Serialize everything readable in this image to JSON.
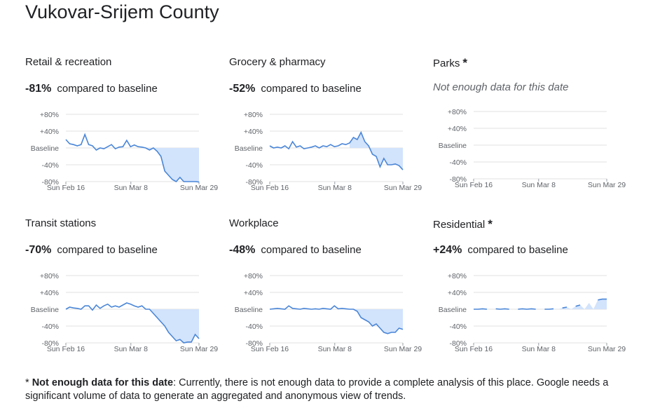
{
  "page_title": "Vukovar-Srijem County",
  "footnote": {
    "marker": "*",
    "bold": "Not enough data for this date",
    "text": ": Currently, there is not enough data to provide a complete analysis of this place. Google needs a significant volume of data to generate an aggregated and anonymous view of trends."
  },
  "colors": {
    "line": "#4a86d8",
    "fill": "#d2e3fc",
    "grid": "#e0e0e0"
  },
  "chart_data": [
    {
      "type": "area",
      "title": "Retail & recreation",
      "headline": "-81%",
      "headline_suffix": "compared to baseline",
      "y_ticks": [
        "+80%",
        "+40%",
        "Baseline",
        "-40%",
        "-80%"
      ],
      "x_ticks": [
        "Sun Feb 16",
        "Sun Mar 8",
        "Sun Mar 29"
      ],
      "ylim": [
        -80,
        80
      ],
      "x_count": 44,
      "values": [
        20,
        10,
        8,
        5,
        8,
        32,
        8,
        5,
        -5,
        0,
        -2,
        3,
        8,
        -2,
        2,
        3,
        18,
        3,
        7,
        3,
        2,
        0,
        -5,
        0,
        -8,
        -20,
        -55,
        -65,
        -75,
        -80,
        -70,
        -80,
        -80,
        -80,
        -80,
        -81
      ]
    },
    {
      "type": "area",
      "title": "Grocery & pharmacy",
      "headline": "-52%",
      "headline_suffix": "compared to baseline",
      "y_ticks": [
        "+80%",
        "+40%",
        "Baseline",
        "-40%",
        "-80%"
      ],
      "x_ticks": [
        "Sun Feb 16",
        "Sun Mar 8",
        "Sun Mar 29"
      ],
      "ylim": [
        -80,
        80
      ],
      "x_count": 44,
      "values": [
        5,
        0,
        2,
        0,
        5,
        -2,
        15,
        2,
        5,
        -2,
        0,
        2,
        5,
        0,
        5,
        3,
        8,
        3,
        5,
        10,
        8,
        12,
        25,
        20,
        37,
        15,
        5,
        -15,
        -20,
        -45,
        -25,
        -40,
        -40,
        -38,
        -42,
        -52
      ]
    },
    {
      "type": "area",
      "title": "Parks",
      "no_data": true,
      "no_data_text": "Not enough data for this date",
      "y_ticks": [
        "+80%",
        "+40%",
        "Baseline",
        "-40%",
        "-80%"
      ],
      "x_ticks": [
        "Sun Feb 16",
        "Sun Mar 8",
        "Sun Mar 29"
      ],
      "ylim": [
        -80,
        80
      ],
      "x_count": 44,
      "values": []
    },
    {
      "type": "area",
      "title": "Transit stations",
      "headline": "-70%",
      "headline_suffix": "compared to baseline",
      "y_ticks": [
        "+80%",
        "+40%",
        "Baseline",
        "-40%",
        "-80%"
      ],
      "x_ticks": [
        "Sun Feb 16",
        "Sun Mar 8",
        "Sun Mar 29"
      ],
      "ylim": [
        -80,
        80
      ],
      "x_count": 44,
      "values": [
        0,
        5,
        3,
        2,
        0,
        8,
        8,
        -2,
        10,
        2,
        8,
        12,
        5,
        8,
        5,
        10,
        15,
        12,
        8,
        5,
        8,
        0,
        0,
        -10,
        -20,
        -30,
        -40,
        -55,
        -65,
        -75,
        -72,
        -80,
        -78,
        -78,
        -60,
        -70
      ]
    },
    {
      "type": "area",
      "title": "Workplace",
      "headline": "-48%",
      "headline_suffix": "compared to baseline",
      "y_ticks": [
        "+80%",
        "+40%",
        "Baseline",
        "-40%",
        "-80%"
      ],
      "x_ticks": [
        "Sun Feb 16",
        "Sun Mar 8",
        "Sun Mar 29"
      ],
      "ylim": [
        -80,
        80
      ],
      "x_count": 44,
      "values": [
        0,
        1,
        2,
        1,
        0,
        8,
        2,
        1,
        0,
        2,
        1,
        0,
        1,
        0,
        2,
        1,
        0,
        8,
        1,
        2,
        1,
        0,
        0,
        -5,
        -20,
        -25,
        -30,
        -40,
        -35,
        -45,
        -55,
        -58,
        -55,
        -55,
        -45,
        -48
      ]
    },
    {
      "type": "area",
      "title": "Residential",
      "headline": "+24%",
      "headline_suffix": "compared to baseline",
      "has_asterisk": true,
      "y_ticks": [
        "+80%",
        "+40%",
        "Baseline",
        "-40%",
        "-80%"
      ],
      "x_ticks": [
        "Sun Feb 16",
        "Sun Mar 8",
        "Sun Mar 29"
      ],
      "ylim": [
        -80,
        80
      ],
      "x_count": 44,
      "values": [
        0,
        0,
        1,
        0,
        null,
        1,
        0,
        1,
        0,
        null,
        0,
        1,
        0,
        1,
        0,
        null,
        0,
        0,
        1,
        null,
        3,
        5,
        null,
        7,
        10,
        null,
        15,
        null,
        22,
        24,
        24
      ]
    }
  ]
}
